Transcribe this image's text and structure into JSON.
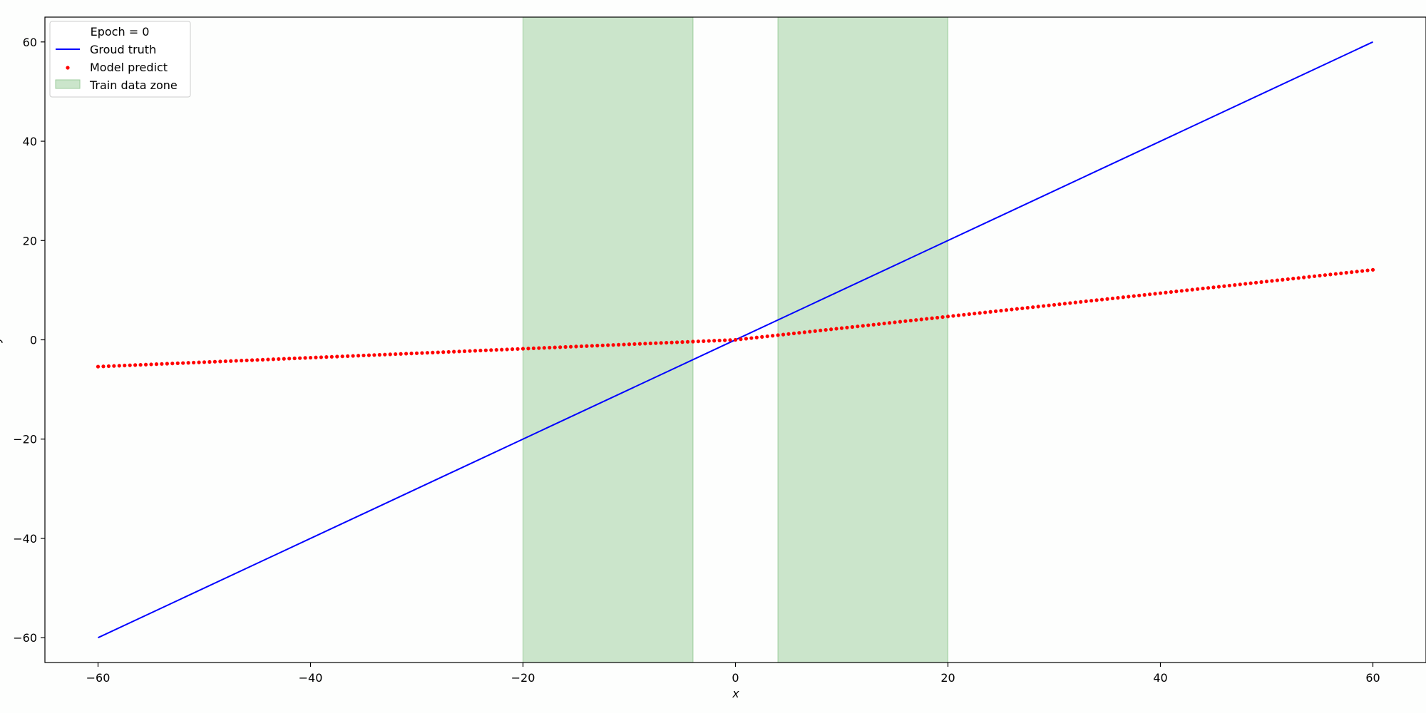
{
  "chart_data": {
    "type": "line",
    "title": "",
    "xlabel": "x",
    "ylabel": "y",
    "xlim": [
      -65,
      65
    ],
    "ylim": [
      -65,
      65
    ],
    "grid": false,
    "legend_placement": "top-left",
    "x_ticks": [
      -60,
      -40,
      -20,
      0,
      20,
      40,
      60
    ],
    "y_ticks": [
      -60,
      -40,
      -20,
      0,
      20,
      40,
      60
    ],
    "x_tick_labels": [
      "−60",
      "−40",
      "−20",
      "0",
      "20",
      "40",
      "60"
    ],
    "y_tick_labels": [
      "−60",
      "−40",
      "−20",
      "0",
      "20",
      "40",
      "60"
    ],
    "legend": {
      "title": "Epoch = 0",
      "entries": [
        {
          "label": "Groud truth",
          "kind": "line",
          "color": "#0000ff"
        },
        {
          "label": "Model predict",
          "kind": "scatter",
          "color": "#ff0000"
        },
        {
          "label": "Train data zone",
          "kind": "patch",
          "color": "#cbe5cb",
          "edge_color": "#9ccc9c"
        }
      ]
    },
    "train_zones": [
      {
        "x_start": -20,
        "x_end": -4
      },
      {
        "x_start": 4,
        "x_end": 20
      }
    ],
    "series": [
      {
        "name": "Groud truth",
        "kind": "line",
        "color": "#0000ff",
        "x": [
          -60,
          60
        ],
        "y": [
          -60,
          60
        ]
      },
      {
        "name": "Model predict",
        "kind": "scatter",
        "color": "#ff0000",
        "x_range": [
          -60,
          60
        ],
        "n_points": 241,
        "negative_slope": 0.09,
        "positive_slope": 0.235
      }
    ]
  }
}
